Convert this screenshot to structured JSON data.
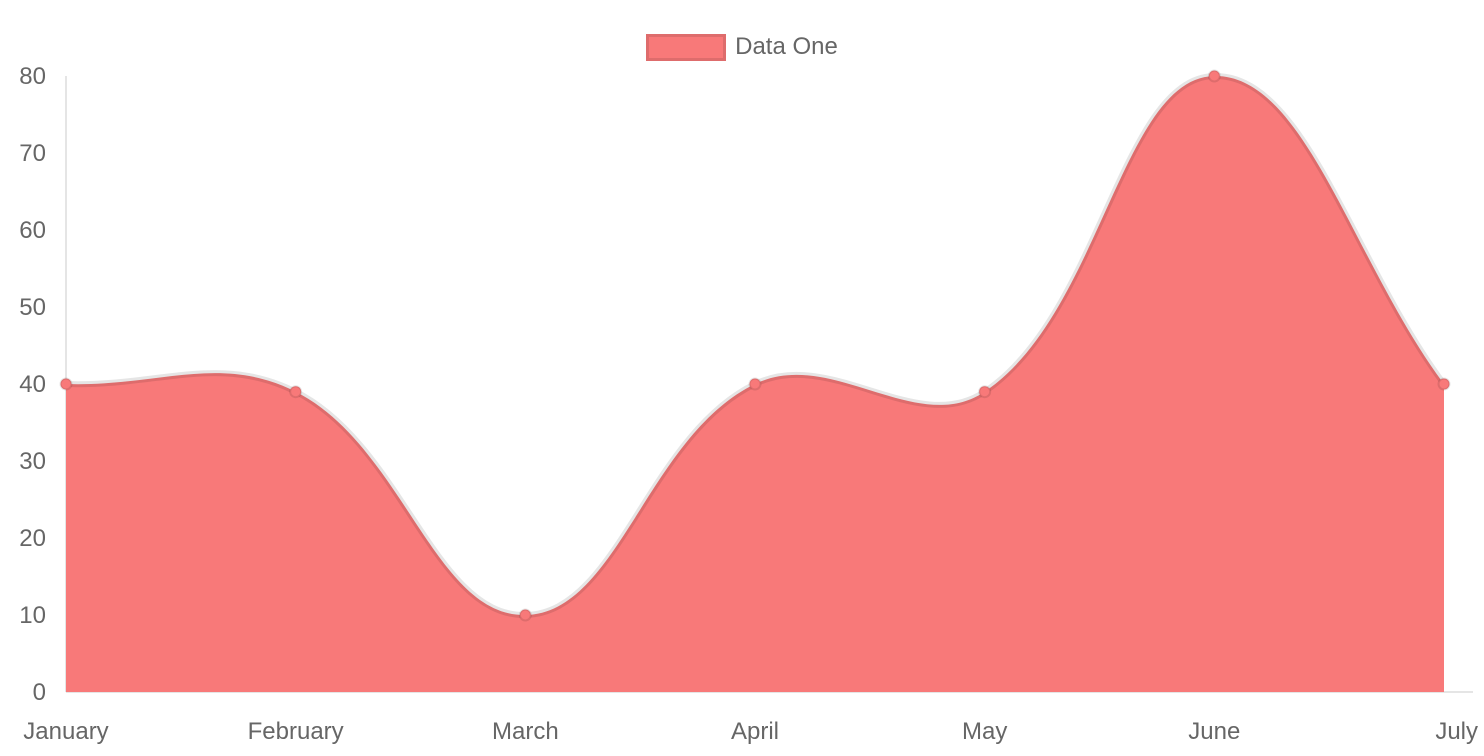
{
  "chart_data": {
    "type": "area",
    "title": "",
    "categories": [
      "January",
      "February",
      "March",
      "April",
      "May",
      "June",
      "July"
    ],
    "series": [
      {
        "name": "Data One",
        "values": [
          40,
          39,
          10,
          40,
          39,
          80,
          40
        ]
      }
    ],
    "xlabel": "",
    "ylabel": "",
    "ylim": [
      0,
      80
    ],
    "y_ticks": [
      0,
      10,
      20,
      30,
      40,
      50,
      60,
      70,
      80
    ],
    "grid": false,
    "legend_position": "top",
    "line_tension": 0.4,
    "colors": {
      "fill": "#f87979",
      "line": "rgba(0,0,0,0.1)",
      "point_fill": "#f87979",
      "point_border": "rgba(0,0,0,0.1)",
      "axis_line": "rgba(0,0,0,0.1)",
      "label_text": "#666666"
    }
  },
  "legend": {
    "items": [
      {
        "label": "Data One",
        "color": "#f87979"
      }
    ]
  }
}
